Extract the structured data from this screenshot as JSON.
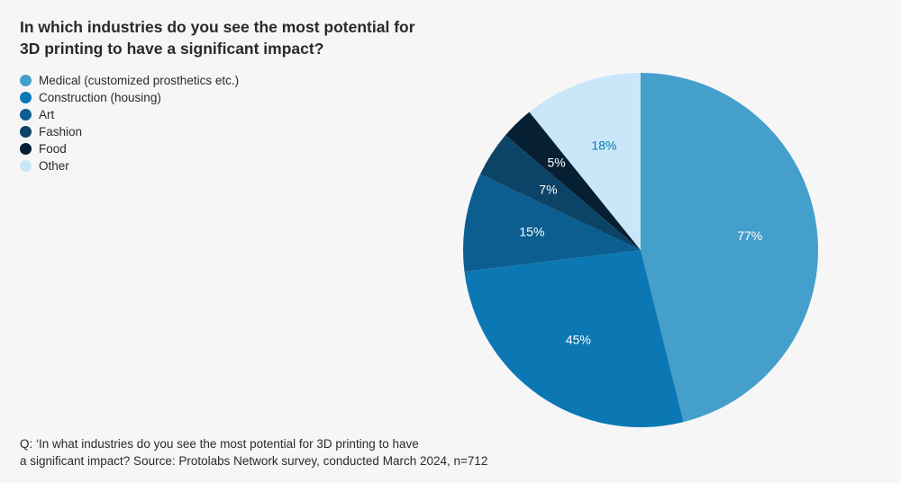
{
  "header": {
    "title_line1": "In which industries do you see the most potential for",
    "title_line2": "3D printing to have a significant impact?"
  },
  "footer": {
    "note_line1": "Q: ‘In what industries do you see the most potential for 3D printing to have",
    "note_line2": "a significant impact? Source: Protolabs Network survey, conducted March 2024, n=712"
  },
  "chart_data": {
    "type": "pie",
    "title": "In which industries do you see the most potential for 3D printing to have a significant impact?",
    "legend_position": "top-left",
    "slices": [
      {
        "label": "Medical (customized prosthetics etc.)",
        "value": 77,
        "display": "77%",
        "color": "#449fcb",
        "label_color": "#ffffff"
      },
      {
        "label": "Construction (housing)",
        "value": 45,
        "display": "45%",
        "color": "#0b78b4",
        "label_color": "#ffffff"
      },
      {
        "label": "Art",
        "value": 15,
        "display": "15%",
        "color": "#0b5e8f",
        "label_color": "#ffffff"
      },
      {
        "label": "Fashion",
        "value": 7,
        "display": "7%",
        "color": "#0c4468",
        "label_color": "#ffffff"
      },
      {
        "label": "Food",
        "value": 5,
        "display": "5%",
        "color": "#071f33",
        "label_color": "#ffffff"
      },
      {
        "label": "Other",
        "value": 18,
        "display": "18%",
        "color": "#c9e7f8",
        "label_color": "#0b78b4"
      }
    ]
  }
}
